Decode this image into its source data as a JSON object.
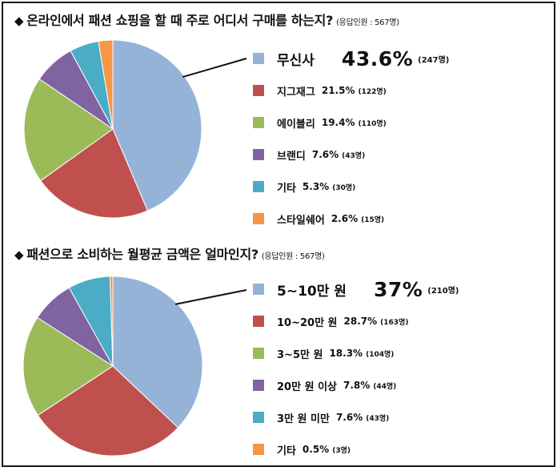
{
  "chart_data": [
    {
      "type": "pie",
      "title": "온라인에서 패션 쇼핑을 할 때 주로 어디서 구매를 하는지?",
      "note": "(응답인원 : 567명)",
      "slices": [
        {
          "label": "무신사",
          "pct_label": "43.6%",
          "count_label": "(247명)",
          "value": 43.6,
          "color": "#95b3d7"
        },
        {
          "label": "지그재그",
          "pct_label": "21.5%",
          "count_label": "(122명)",
          "value": 21.5,
          "color": "#c0504d"
        },
        {
          "label": "에이블리",
          "pct_label": "19.4%",
          "count_label": "(110명)",
          "value": 19.4,
          "color": "#9bbb59"
        },
        {
          "label": "브랜디",
          "pct_label": "7.6%",
          "count_label": "(43명)",
          "value": 7.6,
          "color": "#8064a2"
        },
        {
          "label": "기타",
          "pct_label": "5.3%",
          "count_label": "(30명)",
          "value": 5.3,
          "color": "#4bacc6"
        },
        {
          "label": "스타일쉐어",
          "pct_label": "2.6%",
          "count_label": "(15명)",
          "value": 2.6,
          "color": "#f79646"
        }
      ]
    },
    {
      "type": "pie",
      "title": "패션으로 소비하는 월평균 금액은 얼마인지?",
      "note": "(응답인원 : 567명)",
      "slices": [
        {
          "label": "5~10만 원",
          "pct_label": "37%",
          "count_label": "(210명)",
          "value": 37.0,
          "color": "#95b3d7"
        },
        {
          "label": "10~20만 원",
          "pct_label": "28.7%",
          "count_label": "(163명)",
          "value": 28.7,
          "color": "#c0504d"
        },
        {
          "label": "3~5만 원",
          "pct_label": "18.3%",
          "count_label": "(104명)",
          "value": 18.3,
          "color": "#9bbb59"
        },
        {
          "label": "20만 원 이상",
          "pct_label": "7.8%",
          "count_label": "(44명)",
          "value": 7.8,
          "color": "#8064a2"
        },
        {
          "label": "3만 원 미만",
          "pct_label": "7.6%",
          "count_label": "(43명)",
          "value": 7.6,
          "color": "#4bacc6"
        },
        {
          "label": "기타",
          "pct_label": "0.5%",
          "count_label": "(3명)",
          "value": 0.5,
          "color": "#f79646"
        }
      ]
    }
  ]
}
